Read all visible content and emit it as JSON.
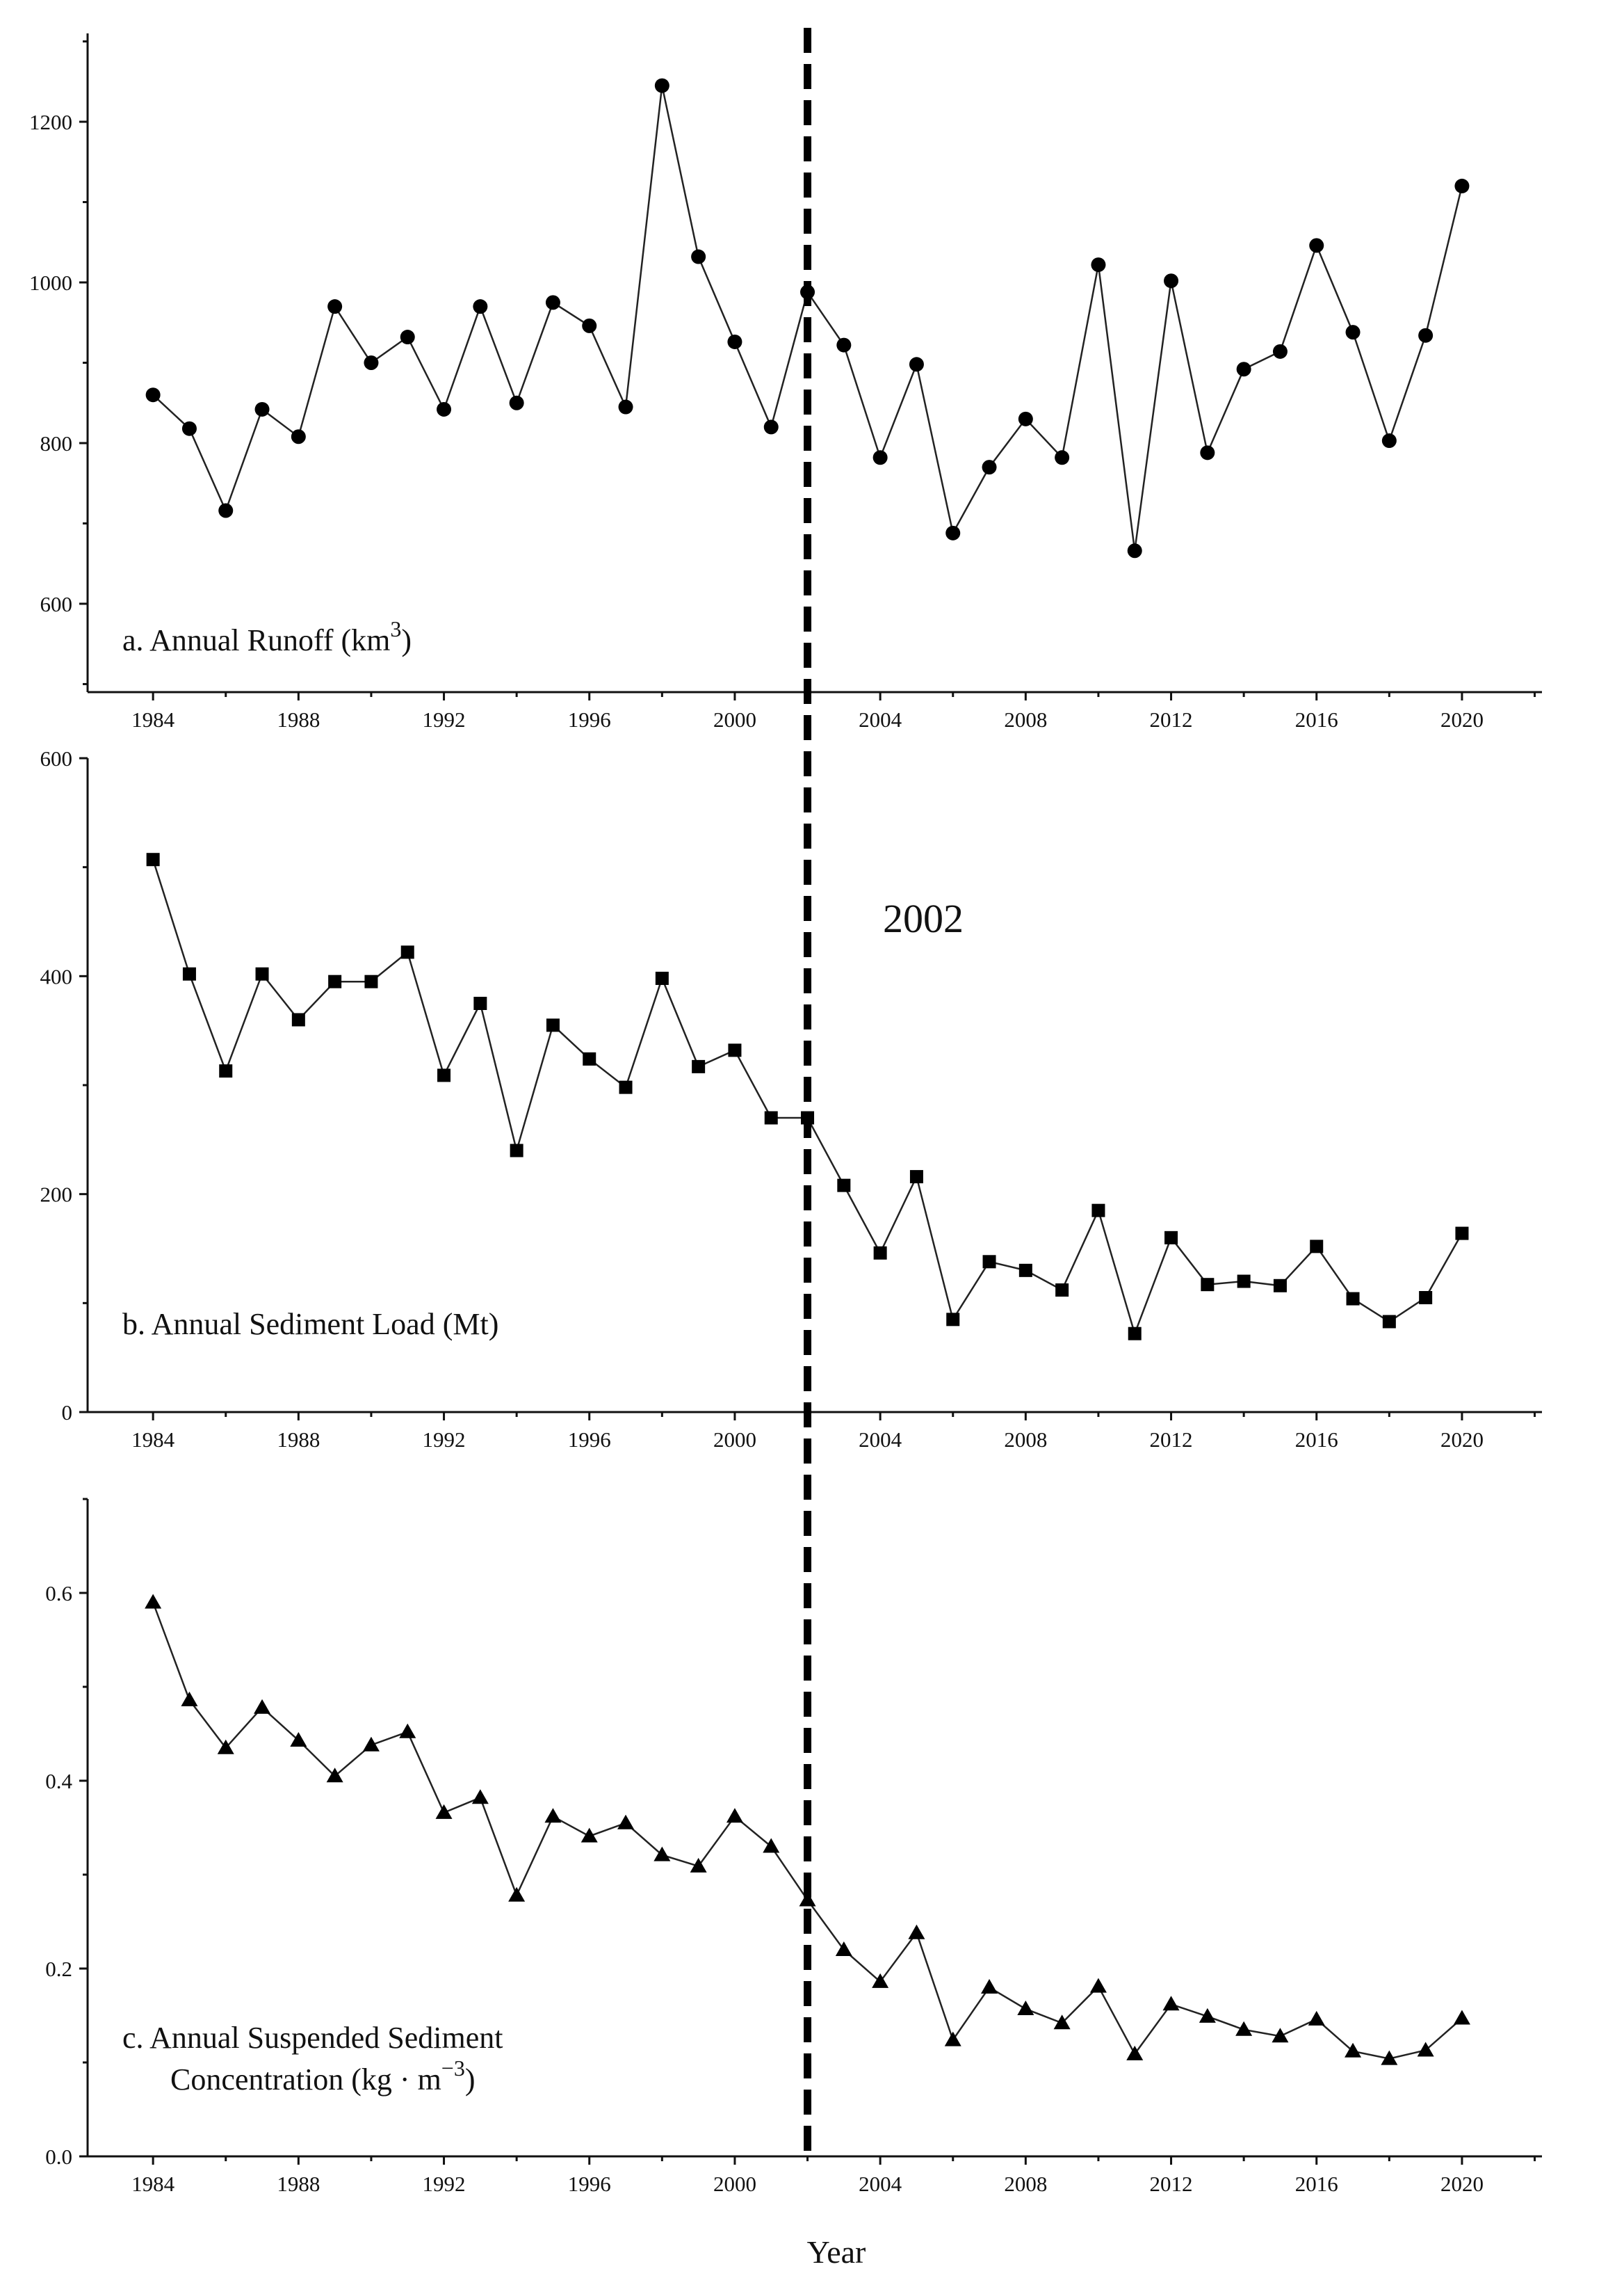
{
  "chart_data": [
    {
      "type": "line",
      "panel": "a",
      "label_line1": "a. Annual Runoff (km",
      "label_sup": "3",
      "label_close": ")",
      "marker": "circle",
      "xlabel": "",
      "ylabel": "",
      "xlim": [
        1982.2,
        2022.2
      ],
      "ylim": [
        490,
        1310
      ],
      "xticks": [
        1984,
        1988,
        1992,
        1996,
        2000,
        2004,
        2008,
        2012,
        2016,
        2020
      ],
      "yticks": [
        600,
        800,
        1000,
        1200
      ],
      "x": [
        1984,
        1985,
        1986,
        1987,
        1988,
        1989,
        1990,
        1991,
        1992,
        1993,
        1994,
        1995,
        1996,
        1997,
        1998,
        1999,
        2000,
        2001,
        2002,
        2003,
        2004,
        2005,
        2006,
        2007,
        2008,
        2009,
        2010,
        2011,
        2012,
        2013,
        2014,
        2015,
        2016,
        2017,
        2018,
        2019,
        2020
      ],
      "values": [
        860,
        818,
        716,
        842,
        808,
        970,
        900,
        932,
        842,
        970,
        850,
        975,
        946,
        845,
        1245,
        1032,
        926,
        820,
        988,
        922,
        782,
        898,
        688,
        770,
        830,
        782,
        1022,
        666,
        1002,
        788,
        892,
        914,
        1046,
        938,
        803,
        934,
        1120
      ]
    },
    {
      "type": "line",
      "panel": "b",
      "label_line1": "b. Annual Sediment Load (Mt)",
      "marker": "square",
      "xlabel": "",
      "ylabel": "",
      "xlim": [
        1982.2,
        2022.2
      ],
      "ylim": [
        0,
        600
      ],
      "xticks": [
        1984,
        1988,
        1992,
        1996,
        2000,
        2004,
        2008,
        2012,
        2016,
        2020
      ],
      "yticks": [
        0,
        200,
        400,
        600
      ],
      "x": [
        1984,
        1985,
        1986,
        1987,
        1988,
        1989,
        1990,
        1991,
        1992,
        1993,
        1994,
        1995,
        1996,
        1997,
        1998,
        1999,
        2000,
        2001,
        2002,
        2003,
        2004,
        2005,
        2006,
        2007,
        2008,
        2009,
        2010,
        2011,
        2012,
        2013,
        2014,
        2015,
        2016,
        2017,
        2018,
        2019,
        2020
      ],
      "values": [
        507,
        402,
        313,
        402,
        360,
        395,
        395,
        422,
        309,
        375,
        240,
        355,
        324,
        298,
        398,
        317,
        332,
        270,
        270,
        208,
        146,
        216,
        85,
        138,
        130,
        112,
        185,
        72,
        160,
        117,
        120,
        116,
        152,
        104,
        83,
        105,
        164
      ]
    },
    {
      "type": "line",
      "panel": "c",
      "label_line1": "c. Annual Suspended Sediment",
      "label_line2": "Concentration (kg · m",
      "label_sup": "−3",
      "label_close": ")",
      "marker": "triangle",
      "xlabel": "Year",
      "ylabel": "",
      "xlim": [
        1982.2,
        2022.2
      ],
      "ylim": [
        0,
        0.7
      ],
      "xticks": [
        1984,
        1988,
        1992,
        1996,
        2000,
        2004,
        2008,
        2012,
        2016,
        2020
      ],
      "yticks": [
        0.0,
        0.2,
        0.4,
        0.6
      ],
      "yticks_text": [
        "0.0",
        "0.2",
        "0.4",
        "0.6"
      ],
      "x": [
        1984,
        1985,
        1986,
        1987,
        1988,
        1989,
        1990,
        1991,
        1992,
        1993,
        1994,
        1995,
        1996,
        1997,
        1998,
        1999,
        2000,
        2001,
        2002,
        2003,
        2004,
        2005,
        2006,
        2007,
        2008,
        2009,
        2010,
        2011,
        2012,
        2013,
        2014,
        2015,
        2016,
        2017,
        2018,
        2019,
        2020
      ],
      "values": [
        0.59,
        0.486,
        0.435,
        0.478,
        0.443,
        0.405,
        0.438,
        0.452,
        0.366,
        0.382,
        0.278,
        0.362,
        0.341,
        0.355,
        0.321,
        0.309,
        0.362,
        0.33,
        0.273,
        0.22,
        0.186,
        0.238,
        0.124,
        0.18,
        0.157,
        0.142,
        0.181,
        0.109,
        0.162,
        0.149,
        0.135,
        0.128,
        0.146,
        0.112,
        0.104,
        0.113,
        0.147
      ]
    }
  ],
  "change_point": {
    "year": 2002,
    "label": "2002"
  }
}
